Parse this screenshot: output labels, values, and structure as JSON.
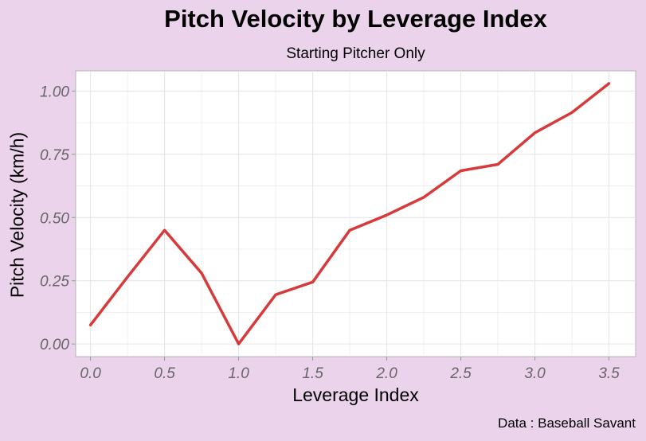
{
  "chart_data": {
    "type": "line",
    "title": "Pitch Velocity by Leverage Index",
    "subtitle": "Starting Pitcher Only",
    "xlabel": "Leverage Index",
    "ylabel": "Pitch Velocity (km/h)",
    "caption": "Data : Baseball Savant",
    "x": [
      0.0,
      0.25,
      0.5,
      0.75,
      1.0,
      1.25,
      1.5,
      1.75,
      2.0,
      2.25,
      2.5,
      2.75,
      3.0,
      3.25,
      3.5
    ],
    "series": [
      {
        "values": [
          0.075,
          0.265,
          0.45,
          0.28,
          0.0,
          0.195,
          0.245,
          0.45,
          0.51,
          0.58,
          0.685,
          0.71,
          0.835,
          0.915,
          1.03
        ],
        "color": "#d63a3a"
      }
    ],
    "xlim": [
      -0.1,
      3.68
    ],
    "ylim": [
      -0.05,
      1.08
    ],
    "xticks": [
      0.0,
      0.5,
      1.0,
      1.5,
      2.0,
      2.5,
      3.0,
      3.5
    ],
    "xtick_labels": [
      "0.0",
      "0.5",
      "1.0",
      "1.5",
      "2.0",
      "2.5",
      "3.0",
      "3.5"
    ],
    "yticks": [
      0.0,
      0.25,
      0.5,
      0.75,
      1.0
    ],
    "ytick_labels": [
      "0.00",
      "0.25",
      "0.50",
      "0.75",
      "1.00"
    ],
    "grid": true,
    "legend": "none",
    "colors": {
      "background": "#ecd3ec",
      "panel": "#ffffff",
      "grid": "#e6e6e6",
      "line": "#d63a3a"
    }
  }
}
